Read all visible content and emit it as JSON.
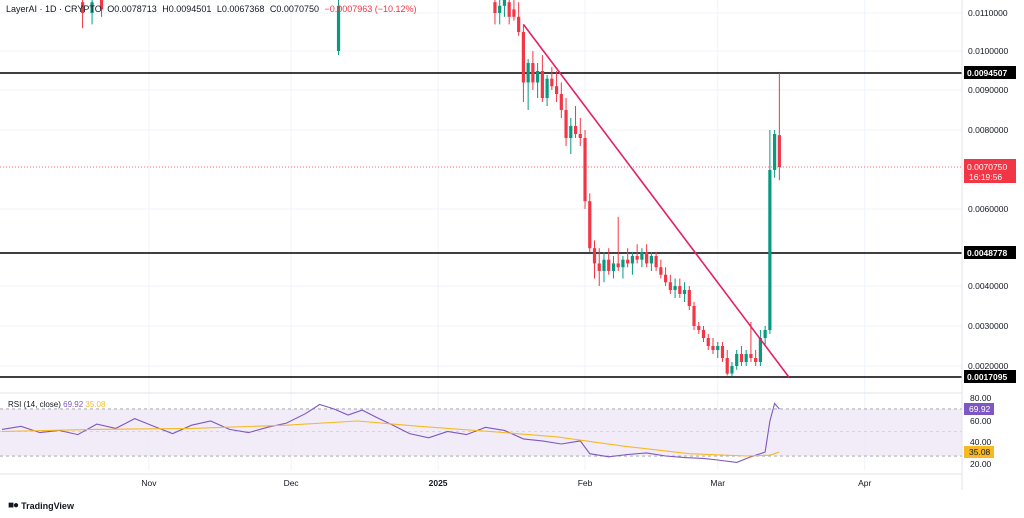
{
  "header": {
    "symbol": "LayerAI · 1D · CRYPTO",
    "open": "O0.0078713",
    "high": "H0.0094501",
    "low": "L0.0067368",
    "close": "C0.0070750",
    "change": "−0.0007963 (−10.12%)"
  },
  "rsi_header": {
    "label": "RSI (14, close)",
    "rsi_value": "69.92",
    "ma_value": "35.08"
  },
  "brand": {
    "name": "TradingView",
    "logo_icon": "tradingview-logo-icon"
  },
  "colors": {
    "up": "#089981",
    "down": "#f23645",
    "trendline": "#e91e63",
    "rsi_line": "#7e57c2",
    "rsi_ma": "#f7b924",
    "rsi_band": "#ede7f6",
    "level_line": "#000000"
  },
  "chart_data": [
    {
      "type": "candlestick",
      "title": "LayerAI · 1D · CRYPTO",
      "x_axis": {
        "ticks": [
          "Nov",
          "Dec",
          "2025",
          "Feb",
          "Mar",
          "Apr"
        ]
      },
      "y_axis": {
        "range": [
          0.00165,
          0.0115
        ],
        "ticks": [
          "0.0110000",
          "0.0100000",
          "0.0090000",
          "0.0080000",
          "0.0060000",
          "0.0040000",
          "0.0030000",
          "0.0020000"
        ]
      },
      "horizontal_levels": [
        {
          "value": 0.0094507,
          "label": "0.0094507"
        },
        {
          "value": 0.0048778,
          "label": "0.0048778"
        },
        {
          "value": 0.0017095,
          "label": "0.0017095"
        }
      ],
      "current_price": {
        "value": 0.007075,
        "label": "0.0070750",
        "countdown": "16:19:56"
      },
      "trendline": {
        "from": {
          "date": "2025-01-19",
          "value": 0.0107
        },
        "to": {
          "date": "2025-03-16",
          "value": 0.00171
        }
      },
      "candles": [
        {
          "date": "2024-10-18",
          "open": 0.0113,
          "high": 0.0115,
          "low": 0.0106,
          "close": 0.011
        },
        {
          "date": "2024-10-20",
          "open": 0.011,
          "high": 0.0115,
          "low": 0.0107,
          "close": 0.0113
        },
        {
          "date": "2024-10-22",
          "open": 0.0114,
          "high": 0.0115,
          "low": 0.0109,
          "close": 0.0111
        },
        {
          "date": "2024-12-11",
          "open": 0.01,
          "high": 0.0115,
          "low": 0.0099,
          "close": 0.0112
        },
        {
          "date": "2025-01-13",
          "open": 0.0113,
          "high": 0.0115,
          "low": 0.0107,
          "close": 0.011
        },
        {
          "date": "2025-01-14",
          "open": 0.011,
          "high": 0.0115,
          "low": 0.0107,
          "close": 0.0112
        },
        {
          "date": "2025-01-15",
          "open": 0.0112,
          "high": 0.0115,
          "low": 0.0109,
          "close": 0.0114
        },
        {
          "date": "2025-01-16",
          "open": 0.0113,
          "high": 0.0115,
          "low": 0.0107,
          "close": 0.0109
        },
        {
          "date": "2025-01-17",
          "open": 0.0111,
          "high": 0.0115,
          "low": 0.0108,
          "close": 0.0109
        },
        {
          "date": "2025-01-18",
          "open": 0.0109,
          "high": 0.0113,
          "low": 0.0104,
          "close": 0.0105
        },
        {
          "date": "2025-01-19",
          "open": 0.0105,
          "high": 0.0107,
          "low": 0.0087,
          "close": 0.0092
        },
        {
          "date": "2025-01-20",
          "open": 0.0092,
          "high": 0.0098,
          "low": 0.0085,
          "close": 0.0097
        },
        {
          "date": "2025-01-21",
          "open": 0.0097,
          "high": 0.01,
          "low": 0.009,
          "close": 0.0092
        },
        {
          "date": "2025-01-22",
          "open": 0.0092,
          "high": 0.0097,
          "low": 0.0088,
          "close": 0.0095
        },
        {
          "date": "2025-01-23",
          "open": 0.0095,
          "high": 0.0099,
          "low": 0.0087,
          "close": 0.0088
        },
        {
          "date": "2025-01-24",
          "open": 0.0088,
          "high": 0.0094,
          "low": 0.0086,
          "close": 0.0093
        },
        {
          "date": "2025-01-25",
          "open": 0.0093,
          "high": 0.0096,
          "low": 0.009,
          "close": 0.0091
        },
        {
          "date": "2025-01-26",
          "open": 0.0091,
          "high": 0.0095,
          "low": 0.0087,
          "close": 0.0089
        },
        {
          "date": "2025-01-27",
          "open": 0.0089,
          "high": 0.0092,
          "low": 0.0083,
          "close": 0.0085
        },
        {
          "date": "2025-01-28",
          "open": 0.0085,
          "high": 0.0088,
          "low": 0.0076,
          "close": 0.0078
        },
        {
          "date": "2025-01-29",
          "open": 0.0078,
          "high": 0.0083,
          "low": 0.0074,
          "close": 0.0081
        },
        {
          "date": "2025-01-30",
          "open": 0.0081,
          "high": 0.0086,
          "low": 0.0078,
          "close": 0.0079
        },
        {
          "date": "2025-01-31",
          "open": 0.0079,
          "high": 0.0083,
          "low": 0.0076,
          "close": 0.0078
        },
        {
          "date": "2025-02-01",
          "open": 0.0078,
          "high": 0.008,
          "low": 0.006,
          "close": 0.0062
        },
        {
          "date": "2025-02-02",
          "open": 0.0062,
          "high": 0.0064,
          "low": 0.0049,
          "close": 0.005
        },
        {
          "date": "2025-02-03",
          "open": 0.005,
          "high": 0.0052,
          "low": 0.0042,
          "close": 0.0046
        },
        {
          "date": "2025-02-04",
          "open": 0.0046,
          "high": 0.005,
          "low": 0.004,
          "close": 0.0044
        },
        {
          "date": "2025-02-05",
          "open": 0.0044,
          "high": 0.0049,
          "low": 0.0041,
          "close": 0.0047
        },
        {
          "date": "2025-02-06",
          "open": 0.0047,
          "high": 0.005,
          "low": 0.0043,
          "close": 0.0044
        },
        {
          "date": "2025-02-07",
          "open": 0.0044,
          "high": 0.0048,
          "low": 0.0042,
          "close": 0.0046
        },
        {
          "date": "2025-02-08",
          "open": 0.0046,
          "high": 0.0058,
          "low": 0.0044,
          "close": 0.0045
        },
        {
          "date": "2025-02-09",
          "open": 0.0045,
          "high": 0.0048,
          "low": 0.0042,
          "close": 0.0047
        },
        {
          "date": "2025-02-10",
          "open": 0.0047,
          "high": 0.005,
          "low": 0.0045,
          "close": 0.0046
        },
        {
          "date": "2025-02-11",
          "open": 0.0046,
          "high": 0.0049,
          "low": 0.0043,
          "close": 0.0048
        },
        {
          "date": "2025-02-12",
          "open": 0.0048,
          "high": 0.0051,
          "low": 0.0046,
          "close": 0.0047
        },
        {
          "date": "2025-02-13",
          "open": 0.0047,
          "high": 0.005,
          "low": 0.0045,
          "close": 0.0049
        },
        {
          "date": "2025-02-14",
          "open": 0.0049,
          "high": 0.0051,
          "low": 0.0045,
          "close": 0.0046
        },
        {
          "date": "2025-02-15",
          "open": 0.0046,
          "high": 0.0049,
          "low": 0.0044,
          "close": 0.0048
        },
        {
          "date": "2025-02-16",
          "open": 0.0048,
          "high": 0.0049,
          "low": 0.0044,
          "close": 0.0045
        },
        {
          "date": "2025-02-17",
          "open": 0.0045,
          "high": 0.0047,
          "low": 0.0042,
          "close": 0.0043
        },
        {
          "date": "2025-02-18",
          "open": 0.0043,
          "high": 0.0045,
          "low": 0.004,
          "close": 0.0041
        },
        {
          "date": "2025-02-19",
          "open": 0.0041,
          "high": 0.0043,
          "low": 0.0038,
          "close": 0.0039
        },
        {
          "date": "2025-02-20",
          "open": 0.0039,
          "high": 0.0042,
          "low": 0.0037,
          "close": 0.004
        },
        {
          "date": "2025-02-21",
          "open": 0.004,
          "high": 0.0042,
          "low": 0.0037,
          "close": 0.0038
        },
        {
          "date": "2025-02-22",
          "open": 0.0038,
          "high": 0.0041,
          "low": 0.0036,
          "close": 0.0039
        },
        {
          "date": "2025-02-23",
          "open": 0.0039,
          "high": 0.004,
          "low": 0.0034,
          "close": 0.0035
        },
        {
          "date": "2025-02-24",
          "open": 0.0035,
          "high": 0.0036,
          "low": 0.0029,
          "close": 0.003
        },
        {
          "date": "2025-02-25",
          "open": 0.003,
          "high": 0.0031,
          "low": 0.0028,
          "close": 0.0029
        },
        {
          "date": "2025-02-26",
          "open": 0.0029,
          "high": 0.003,
          "low": 0.0026,
          "close": 0.0027
        },
        {
          "date": "2025-02-27",
          "open": 0.0027,
          "high": 0.0028,
          "low": 0.0024,
          "close": 0.0025
        },
        {
          "date": "2025-02-28",
          "open": 0.0025,
          "high": 0.0027,
          "low": 0.0023,
          "close": 0.0024
        },
        {
          "date": "2025-03-01",
          "open": 0.0024,
          "high": 0.0026,
          "low": 0.0022,
          "close": 0.0025
        },
        {
          "date": "2025-03-02",
          "open": 0.0025,
          "high": 0.0026,
          "low": 0.0021,
          "close": 0.0022
        },
        {
          "date": "2025-03-03",
          "open": 0.0022,
          "high": 0.0024,
          "low": 0.00175,
          "close": 0.0018
        },
        {
          "date": "2025-03-04",
          "open": 0.0018,
          "high": 0.0021,
          "low": 0.00172,
          "close": 0.002
        },
        {
          "date": "2025-03-05",
          "open": 0.002,
          "high": 0.0024,
          "low": 0.0019,
          "close": 0.0023
        },
        {
          "date": "2025-03-06",
          "open": 0.0023,
          "high": 0.0025,
          "low": 0.002,
          "close": 0.0021
        },
        {
          "date": "2025-03-07",
          "open": 0.0021,
          "high": 0.0024,
          "low": 0.002,
          "close": 0.0023
        },
        {
          "date": "2025-03-08",
          "open": 0.0023,
          "high": 0.0031,
          "low": 0.0021,
          "close": 0.0022
        },
        {
          "date": "2025-03-09",
          "open": 0.0022,
          "high": 0.0024,
          "low": 0.002,
          "close": 0.0021
        },
        {
          "date": "2025-03-10",
          "open": 0.0021,
          "high": 0.0029,
          "low": 0.002,
          "close": 0.0027
        },
        {
          "date": "2025-03-11",
          "open": 0.0027,
          "high": 0.003,
          "low": 0.0025,
          "close": 0.0029
        },
        {
          "date": "2025-03-12",
          "open": 0.0029,
          "high": 0.008,
          "low": 0.0028,
          "close": 0.007
        },
        {
          "date": "2025-03-13",
          "open": 0.007,
          "high": 0.008,
          "low": 0.0068,
          "close": 0.0079
        },
        {
          "date": "2025-03-14",
          "open": 0.0078713,
          "high": 0.0094501,
          "low": 0.0067368,
          "close": 0.007075
        }
      ]
    },
    {
      "type": "line",
      "title": "RSI (14, close)",
      "y_axis": {
        "range": [
          15,
          85
        ],
        "ticks": [
          "80.00",
          "60.00",
          "40.00",
          "20.00"
        ]
      },
      "band": [
        30,
        70
      ],
      "last_values": {
        "rsi": "69.92",
        "ma": "35.08"
      },
      "series": [
        {
          "name": "RSI",
          "points": [
            [
              "2024-10-01",
              52
            ],
            [
              "2024-10-05",
              55
            ],
            [
              "2024-10-09",
              49
            ],
            [
              "2024-10-13",
              51
            ],
            [
              "2024-10-17",
              47
            ],
            [
              "2024-10-21",
              57
            ],
            [
              "2024-10-25",
              53
            ],
            [
              "2024-10-29",
              62
            ],
            [
              "2024-11-02",
              55
            ],
            [
              "2024-11-06",
              48
            ],
            [
              "2024-11-10",
              56
            ],
            [
              "2024-11-14",
              60
            ],
            [
              "2024-11-18",
              52
            ],
            [
              "2024-11-22",
              49
            ],
            [
              "2024-11-26",
              54
            ],
            [
              "2024-11-30",
              58
            ],
            [
              "2024-12-04",
              66
            ],
            [
              "2024-12-07",
              74
            ],
            [
              "2024-12-10",
              70
            ],
            [
              "2024-12-13",
              65
            ],
            [
              "2024-12-16",
              69
            ],
            [
              "2024-12-19",
              63
            ],
            [
              "2024-12-22",
              57
            ],
            [
              "2024-12-26",
              48
            ],
            [
              "2024-12-30",
              44
            ],
            [
              "2025-01-03",
              50
            ],
            [
              "2025-01-07",
              47
            ],
            [
              "2025-01-11",
              54
            ],
            [
              "2025-01-15",
              51
            ],
            [
              "2025-01-19",
              43
            ],
            [
              "2025-01-23",
              41
            ],
            [
              "2025-01-27",
              39
            ],
            [
              "2025-01-31",
              41
            ],
            [
              "2025-02-02",
              33
            ],
            [
              "2025-02-06",
              29
            ],
            [
              "2025-02-10",
              32
            ],
            [
              "2025-02-14",
              34
            ],
            [
              "2025-02-18",
              30
            ],
            [
              "2025-02-22",
              28
            ],
            [
              "2025-02-26",
              27
            ],
            [
              "2025-03-01",
              25
            ],
            [
              "2025-03-05",
              22
            ],
            [
              "2025-03-08",
              29
            ],
            [
              "2025-03-11",
              35
            ],
            [
              "2025-03-12",
              60
            ],
            [
              "2025-03-13",
              75
            ],
            [
              "2025-03-14",
              69.92
            ]
          ]
        },
        {
          "name": "RSI-based MA",
          "points": [
            [
              "2024-10-01",
              50
            ],
            [
              "2024-10-20",
              52
            ],
            [
              "2024-11-10",
              53
            ],
            [
              "2024-11-30",
              56
            ],
            [
              "2024-12-15",
              60
            ],
            [
              "2024-12-28",
              55
            ],
            [
              "2025-01-12",
              50
            ],
            [
              "2025-01-26",
              45
            ],
            [
              "2025-02-09",
              38
            ],
            [
              "2025-02-23",
              33
            ],
            [
              "2025-03-07",
              30
            ],
            [
              "2025-03-12",
              31
            ],
            [
              "2025-03-14",
              35.08
            ]
          ]
        }
      ]
    }
  ]
}
